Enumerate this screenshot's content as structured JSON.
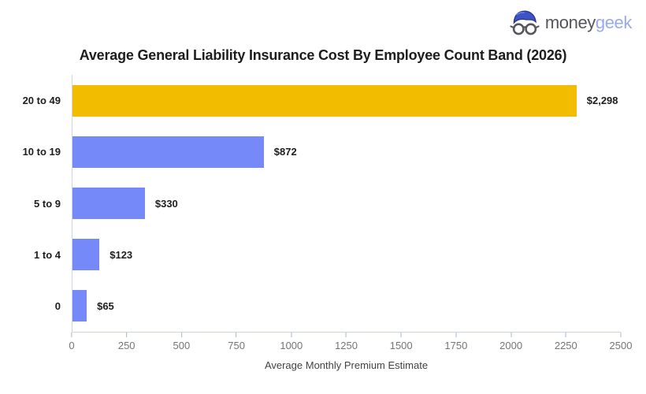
{
  "logo": {
    "brand_prefix": "money",
    "brand_suffix": "geek",
    "icon": "geek-face-icon",
    "prefix_color": "#55565b",
    "suffix_color": "#98a8f1"
  },
  "chart_data": {
    "type": "bar",
    "orientation": "horizontal",
    "title": "Average General Liability Insurance Cost By Employee Count Band (2026)",
    "categories": [
      "20 to 49",
      "10 to 19",
      "5 to 9",
      "1 to 4",
      "0"
    ],
    "values": [
      2298,
      872,
      330,
      123,
      65
    ],
    "value_labels": [
      "$2,298",
      "$872",
      "$330",
      "$123",
      "$65"
    ],
    "bar_colors": [
      "#f2bd00",
      "#7689f9",
      "#7689f9",
      "#7689f9",
      "#7689f9"
    ],
    "xlabel": "Average Monthly Premium Estimate",
    "ylabel": "",
    "xlim": [
      0,
      2500
    ],
    "x_ticks": [
      0,
      250,
      500,
      750,
      1000,
      1250,
      1500,
      1750,
      2000,
      2250,
      2500
    ],
    "grid": false,
    "legend": "none",
    "colors": {
      "highlight_bar": "#f2bd00",
      "default_bar": "#7689f9",
      "axis_line": "#ccd3ee",
      "tick_mark": "#aab4d4",
      "tick_label": "#757575",
      "value_label": "#1d1d1f",
      "category_label": "#1d1d1f",
      "axis_title": "#424242",
      "chart_title": "#1d1d1f"
    }
  }
}
